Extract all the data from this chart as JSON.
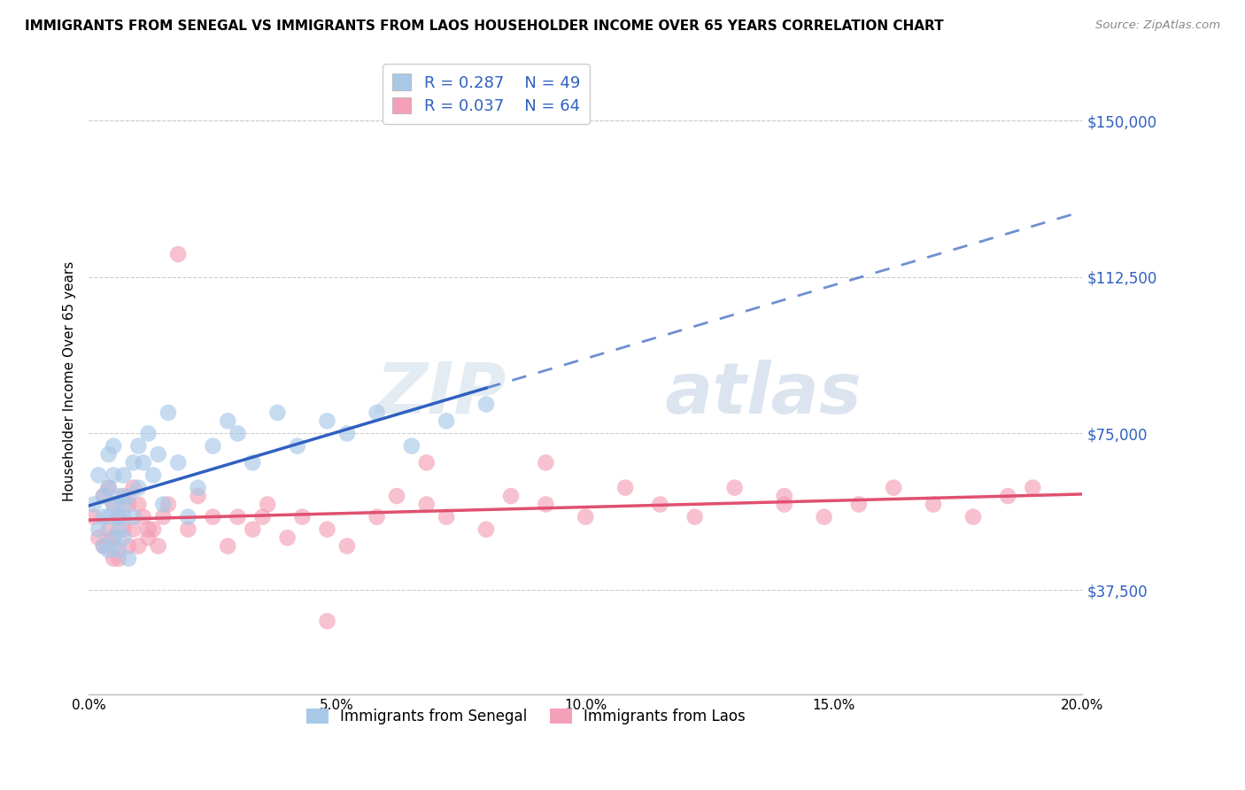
{
  "title": "IMMIGRANTS FROM SENEGAL VS IMMIGRANTS FROM LAOS HOUSEHOLDER INCOME OVER 65 YEARS CORRELATION CHART",
  "source": "Source: ZipAtlas.com",
  "ylabel": "Householder Income Over 65 years",
  "xlim": [
    0.0,
    0.2
  ],
  "ylim": [
    12500,
    162500
  ],
  "yticks": [
    37500,
    75000,
    112500,
    150000
  ],
  "ytick_labels": [
    "$37,500",
    "$75,000",
    "$112,500",
    "$150,000"
  ],
  "senegal_R": 0.287,
  "senegal_N": 49,
  "laos_R": 0.037,
  "laos_N": 64,
  "senegal_color": "#a8c8e8",
  "laos_color": "#f4a0b8",
  "senegal_line_color": "#3060c0",
  "laos_line_color": "#e05070",
  "background_color": "#ffffff",
  "grid_color": "#cccccc",
  "legend_label_senegal": "Immigrants from Senegal",
  "legend_label_laos": "Immigrants from Laos",
  "senegal_x": [
    0.001,
    0.002,
    0.002,
    0.003,
    0.003,
    0.003,
    0.004,
    0.004,
    0.004,
    0.004,
    0.005,
    0.005,
    0.005,
    0.005,
    0.006,
    0.006,
    0.006,
    0.006,
    0.007,
    0.007,
    0.007,
    0.007,
    0.008,
    0.008,
    0.009,
    0.009,
    0.01,
    0.01,
    0.011,
    0.012,
    0.013,
    0.014,
    0.015,
    0.016,
    0.018,
    0.02,
    0.022,
    0.025,
    0.028,
    0.03,
    0.033,
    0.038,
    0.042,
    0.048,
    0.052,
    0.058,
    0.065,
    0.072,
    0.08
  ],
  "senegal_y": [
    58000,
    52000,
    65000,
    60000,
    55000,
    48000,
    62000,
    70000,
    55000,
    47000,
    72000,
    58000,
    50000,
    65000,
    55000,
    60000,
    47000,
    52000,
    58000,
    65000,
    50000,
    55000,
    60000,
    45000,
    68000,
    55000,
    72000,
    62000,
    68000,
    75000,
    65000,
    70000,
    58000,
    80000,
    68000,
    55000,
    62000,
    72000,
    78000,
    75000,
    68000,
    80000,
    72000,
    78000,
    75000,
    80000,
    72000,
    78000,
    82000
  ],
  "laos_x": [
    0.001,
    0.002,
    0.003,
    0.003,
    0.004,
    0.004,
    0.005,
    0.005,
    0.005,
    0.006,
    0.006,
    0.007,
    0.007,
    0.008,
    0.008,
    0.009,
    0.009,
    0.01,
    0.01,
    0.011,
    0.012,
    0.013,
    0.014,
    0.015,
    0.016,
    0.018,
    0.02,
    0.022,
    0.025,
    0.028,
    0.03,
    0.033,
    0.036,
    0.04,
    0.043,
    0.048,
    0.052,
    0.058,
    0.062,
    0.068,
    0.072,
    0.08,
    0.085,
    0.092,
    0.1,
    0.108,
    0.115,
    0.122,
    0.13,
    0.14,
    0.148,
    0.155,
    0.162,
    0.17,
    0.178,
    0.185,
    0.19,
    0.005,
    0.012,
    0.068,
    0.14,
    0.035,
    0.048,
    0.092
  ],
  "laos_y": [
    55000,
    50000,
    48000,
    60000,
    52000,
    62000,
    48000,
    58000,
    50000,
    55000,
    45000,
    60000,
    52000,
    48000,
    58000,
    52000,
    62000,
    58000,
    48000,
    55000,
    50000,
    52000,
    48000,
    55000,
    58000,
    118000,
    52000,
    60000,
    55000,
    48000,
    55000,
    52000,
    58000,
    50000,
    55000,
    52000,
    48000,
    55000,
    60000,
    58000,
    55000,
    52000,
    60000,
    58000,
    55000,
    62000,
    58000,
    55000,
    62000,
    60000,
    55000,
    58000,
    62000,
    58000,
    55000,
    60000,
    62000,
    45000,
    52000,
    68000,
    58000,
    55000,
    30000,
    68000
  ]
}
